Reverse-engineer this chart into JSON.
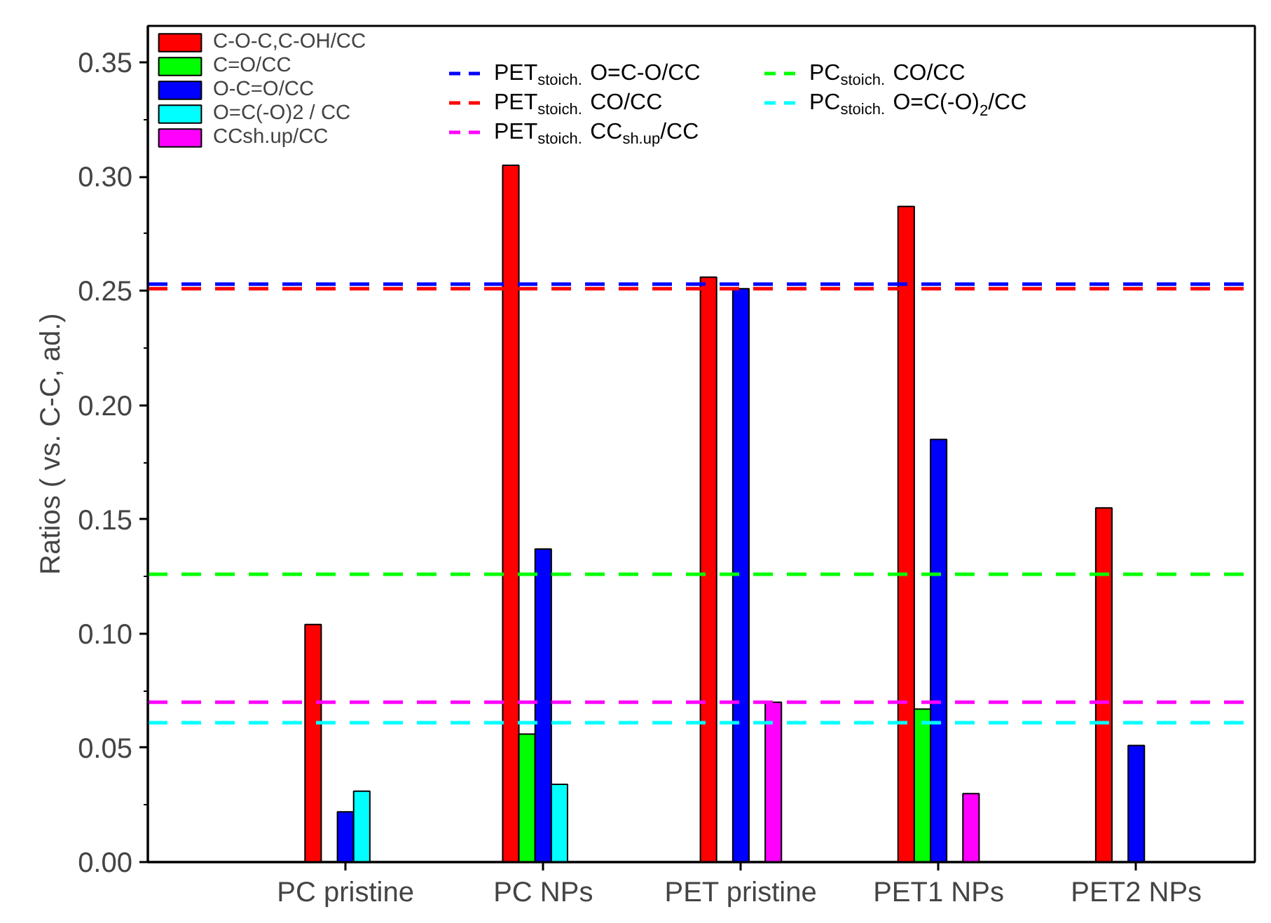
{
  "chart_data": {
    "type": "bar",
    "ylabel": "Ratios ( vs. C-C, ad.)",
    "categories": [
      "PC pristine",
      "PC NPs",
      "PET pristine",
      "PET1 NPs",
      "PET2 NPs"
    ],
    "series": [
      {
        "name": "C-O-C,C-OH/CC",
        "color": "#ff0000",
        "values": [
          0.104,
          0.305,
          0.256,
          0.287,
          0.155
        ]
      },
      {
        "name": "C=O/CC",
        "color": "#00ff00",
        "values": [
          null,
          0.056,
          null,
          0.067,
          null
        ]
      },
      {
        "name": "O-C=O/CC",
        "color": "#0000ff",
        "values": [
          0.022,
          0.137,
          0.251,
          0.185,
          0.051
        ]
      },
      {
        "name": "O=C(-O)2 / CC",
        "color": "#00ffff",
        "values": [
          0.031,
          0.034,
          null,
          null,
          null
        ]
      },
      {
        "name": "CCsh.up/CC",
        "color": "#ff00ff",
        "values": [
          null,
          null,
          0.07,
          0.03,
          null
        ]
      }
    ],
    "ylim": [
      0,
      0.366
    ],
    "yticks": [
      {
        "value": 0,
        "label": "0.00"
      },
      {
        "value": 0.025,
        "label": null
      },
      {
        "value": 0.05,
        "label": "0.05"
      },
      {
        "value": 0.075,
        "label": null
      },
      {
        "value": 0.1,
        "label": "0.10"
      },
      {
        "value": 0.125,
        "label": null
      },
      {
        "value": 0.15,
        "label": "0.15"
      },
      {
        "value": 0.175,
        "label": null
      },
      {
        "value": 0.2,
        "label": "0.20"
      },
      {
        "value": 0.225,
        "label": null
      },
      {
        "value": 0.25,
        "label": "0.25"
      },
      {
        "value": 0.275,
        "label": null
      },
      {
        "value": 0.3,
        "label": "0.30"
      },
      {
        "value": 0.325,
        "label": null
      },
      {
        "value": 0.35,
        "label": "0.35"
      }
    ],
    "ref_lines": [
      {
        "axis": "y",
        "value": 0.253,
        "label": "PET$_{stoich.}$ O=C-O/CC",
        "color": "#0000ff",
        "line_style": "dashed"
      },
      {
        "axis": "y",
        "value": 0.251,
        "label": "PET$_{stoich.}$ CO/CC",
        "color": "#ff0000",
        "line_style": "dashed"
      },
      {
        "axis": "y",
        "value": 0.07,
        "label": "PET$_{stoich.}$ CC$_{sh.up}$/CC",
        "color": "#ff00ff",
        "line_style": "dashed"
      },
      {
        "axis": "y",
        "value": 0.126,
        "label": "PC$_{stoich.}$ CO/CC",
        "color": "#00ff00",
        "line_style": "dashed"
      },
      {
        "axis": "y",
        "value": 0.061,
        "label": "PC$_{stoich.}$ O=C(-O)$_{2}$/CC",
        "color": "#00ffff",
        "line_style": "dashed"
      }
    ],
    "grid": false,
    "legend": "top left"
  }
}
